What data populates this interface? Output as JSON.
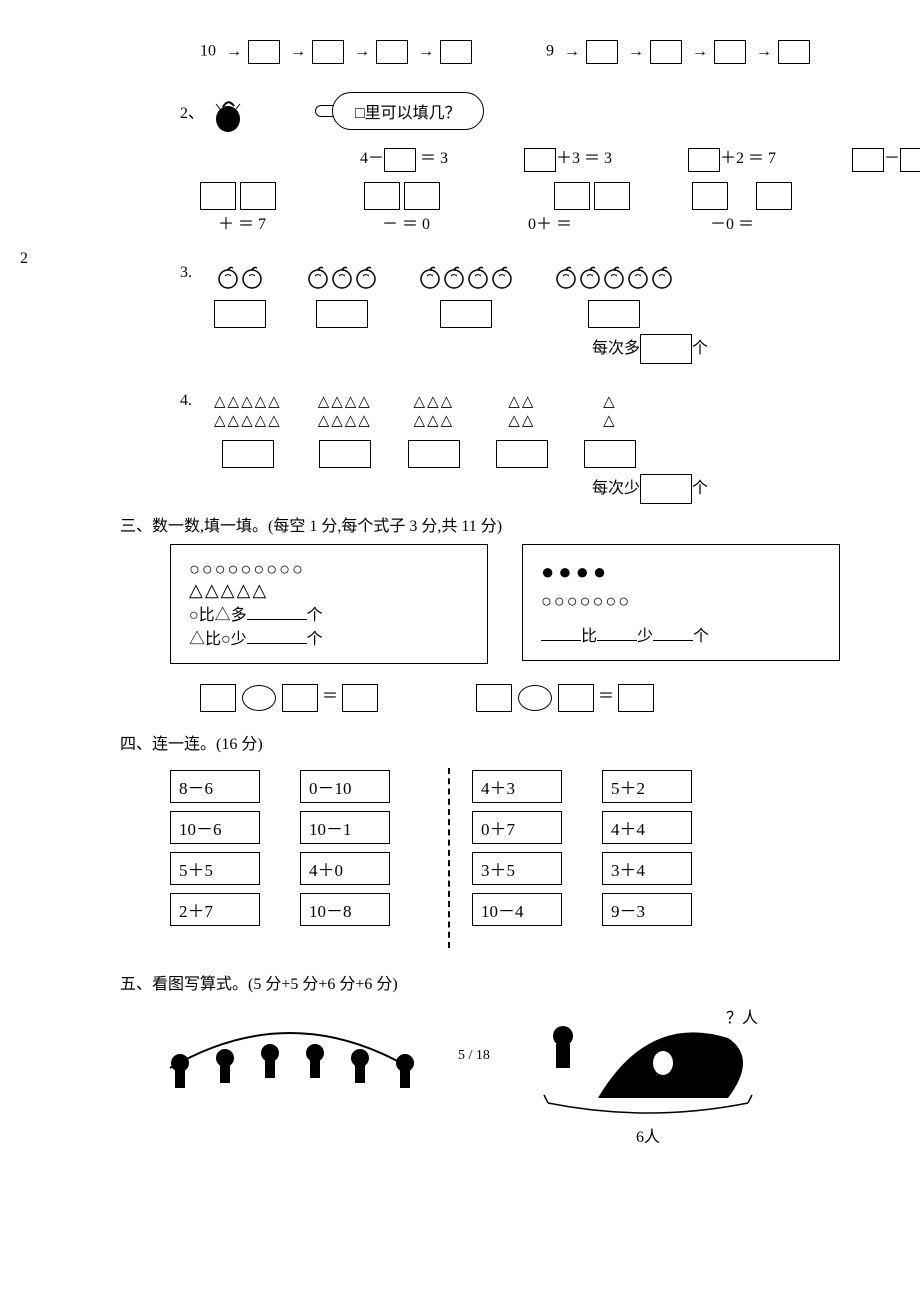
{
  "seq": {
    "a_start": "10",
    "b_start": "9",
    "arrow": "→"
  },
  "q2": {
    "num": "2、",
    "speech": "□里可以填几？",
    "row1": {
      "a": "4－",
      "a2": "＝ 3",
      "b": "＋3 ＝ 3",
      "c": "＋2 ＝ 7",
      "d": "－",
      "d2": "＝"
    },
    "left2": "2",
    "row2": {
      "a": "＋    ＝ 7",
      "b": "－    ＝ 0",
      "c": "0＋    ＝",
      "d": "－0 ＝"
    }
  },
  "q3": {
    "num": "3.",
    "counts": [
      2,
      3,
      4,
      5
    ],
    "note_pre": "每次多",
    "note_suf": "个"
  },
  "q4": {
    "num": "4.",
    "tri": "△",
    "rows": [
      [
        "△△△△△",
        "△△△△",
        "△△△",
        "△△",
        "△"
      ],
      [
        "△△△△△",
        "△△△△",
        "△△△",
        "△△",
        "△"
      ]
    ],
    "note_pre": "每次少",
    "note_suf": "个"
  },
  "sect3": {
    "title": "三、数一数,填一填。(每空 1 分,每个式子 3 分,共 11 分)",
    "left": {
      "circles": "○○○○○○○○○",
      "tris": "△△△△△",
      "l1a": "○比△多",
      "l1b": "个",
      "l2a": "△比○少",
      "l2b": "个"
    },
    "right": {
      "dots": "●●●●",
      "circles": "○○○○○○○",
      "la": "比",
      "lb": "少",
      "lc": "个"
    },
    "eq": "＝"
  },
  "sect4": {
    "title": "四、连一连。(16 分)",
    "colA": [
      "8－6",
      "10－6",
      "5＋5",
      "2＋7"
    ],
    "colB": [
      "0－10",
      "10－1",
      "4＋0",
      "10－8"
    ],
    "colC": [
      "4＋3",
      "0＋7",
      "3＋5",
      "10－4"
    ],
    "colD": [
      "5＋2",
      "4＋4",
      "3＋4",
      "9－3"
    ]
  },
  "sect5": {
    "title": "五、看图写算式。(5 分+5 分+6 分+6 分)",
    "qmark": "？人",
    "six": "6人"
  },
  "page": "5 / 18"
}
